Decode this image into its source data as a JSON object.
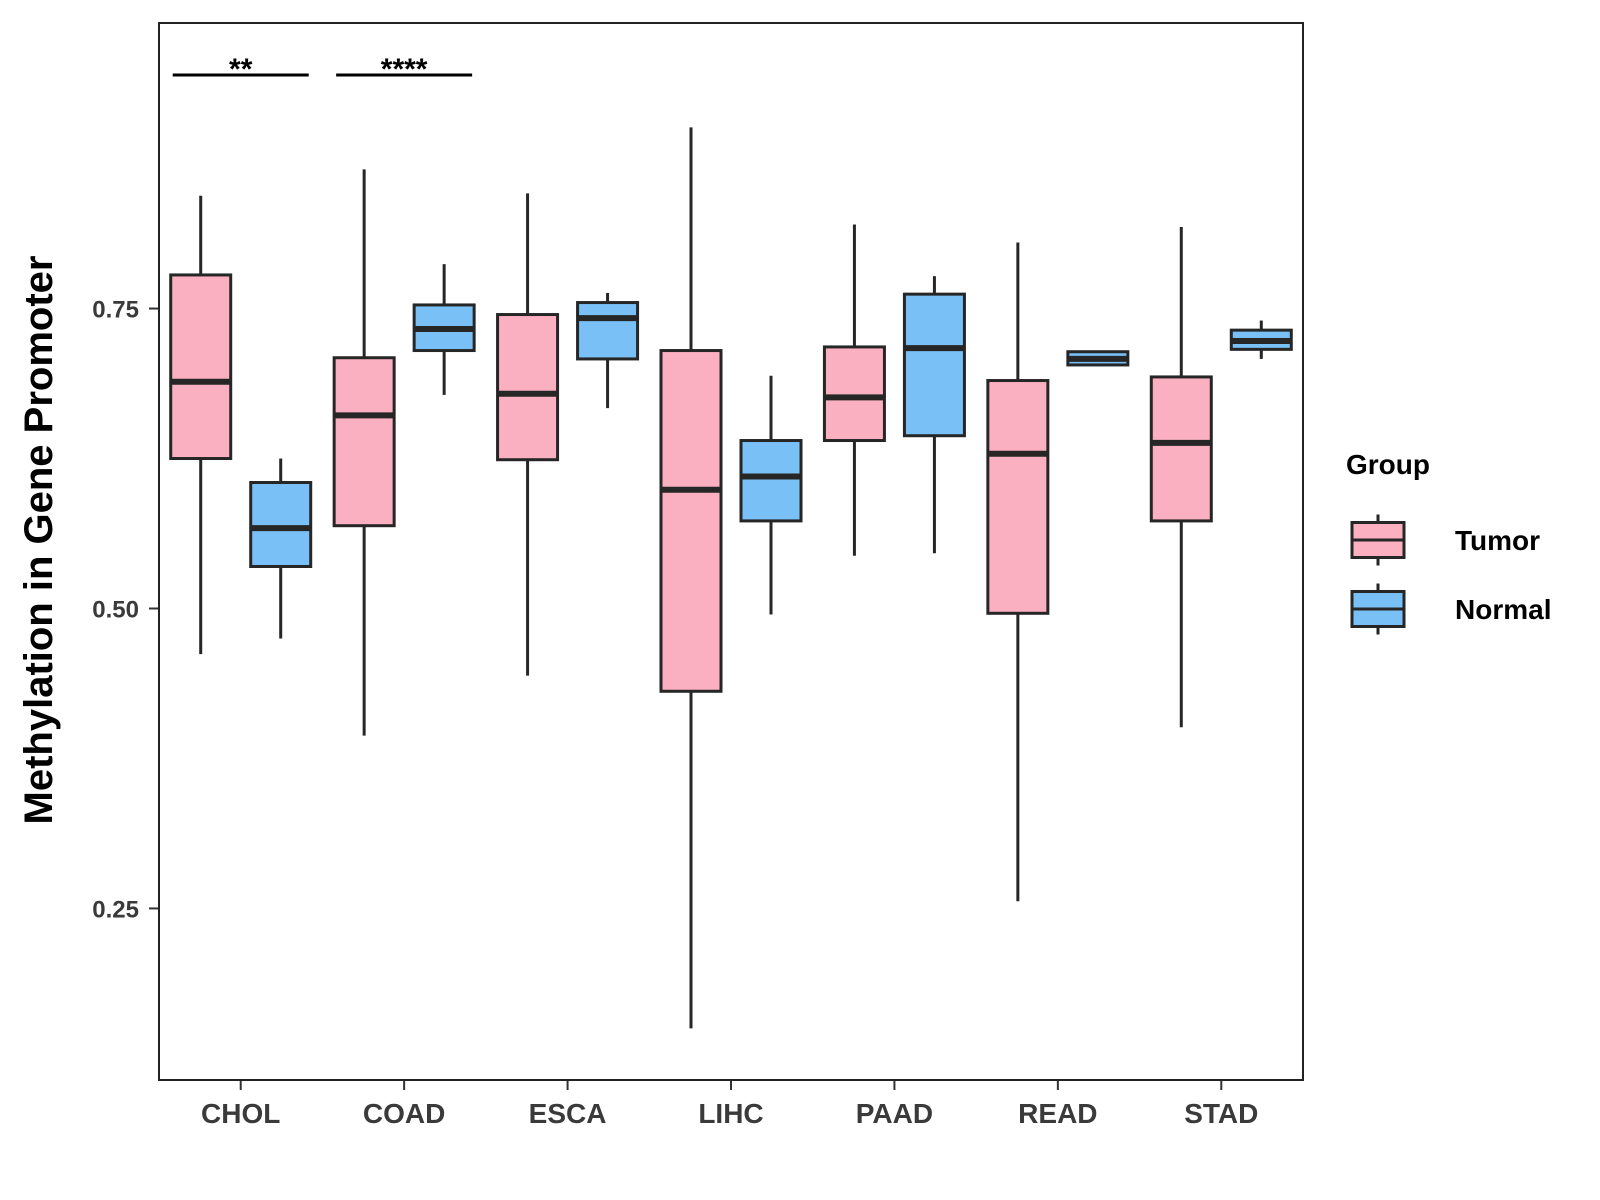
{
  "chart_data": {
    "type": "boxplot",
    "title": "",
    "xlabel": "",
    "ylabel": "Methylation in Gene Promoter",
    "ylim": [
      0.107,
      0.988
    ],
    "yticks": [
      0.25,
      0.5,
      0.75
    ],
    "ytick_labels": [
      "0.25",
      "0.50",
      "0.75"
    ],
    "categories": [
      "CHOL",
      "COAD",
      "ESCA",
      "LIHC",
      "PAAD",
      "READ",
      "STAD"
    ],
    "legend": {
      "title": "Group",
      "position": "right",
      "entries": [
        "Tumor",
        "Normal"
      ]
    },
    "series": [
      {
        "name": "Tumor",
        "color": "#FBB0C1",
        "boxes": [
          {
            "min": 0.462,
            "q1": 0.625,
            "median": 0.689,
            "q3": 0.778,
            "max": 0.844
          },
          {
            "min": 0.394,
            "q1": 0.569,
            "median": 0.661,
            "q3": 0.709,
            "max": 0.866
          },
          {
            "min": 0.444,
            "q1": 0.624,
            "median": 0.679,
            "q3": 0.745,
            "max": 0.846
          },
          {
            "min": 0.15,
            "q1": 0.431,
            "median": 0.599,
            "q3": 0.715,
            "max": 0.901
          },
          {
            "min": 0.544,
            "q1": 0.64,
            "median": 0.676,
            "q3": 0.718,
            "max": 0.82
          },
          {
            "min": 0.256,
            "q1": 0.496,
            "median": 0.629,
            "q3": 0.69,
            "max": 0.805
          },
          {
            "min": 0.401,
            "q1": 0.573,
            "median": 0.638,
            "q3": 0.693,
            "max": 0.818
          }
        ]
      },
      {
        "name": "Normal",
        "color": "#79C0F6",
        "boxes": [
          {
            "min": 0.475,
            "q1": 0.535,
            "median": 0.567,
            "q3": 0.605,
            "max": 0.625
          },
          {
            "min": 0.678,
            "q1": 0.715,
            "median": 0.733,
            "q3": 0.753,
            "max": 0.787
          },
          {
            "min": 0.667,
            "q1": 0.708,
            "median": 0.742,
            "q3": 0.755,
            "max": 0.763
          },
          {
            "min": 0.495,
            "q1": 0.573,
            "median": 0.61,
            "q3": 0.64,
            "max": 0.694
          },
          {
            "min": 0.546,
            "q1": 0.644,
            "median": 0.717,
            "q3": 0.762,
            "max": 0.777
          },
          {
            "min": 0.702,
            "q1": 0.703,
            "median": 0.708,
            "q3": 0.714,
            "max": 0.715
          },
          {
            "min": 0.708,
            "q1": 0.716,
            "median": 0.723,
            "q3": 0.732,
            "max": 0.74
          }
        ]
      }
    ],
    "annotations": [
      {
        "category": "CHOL",
        "text": "**"
      },
      {
        "category": "COAD",
        "text": "****"
      }
    ]
  }
}
